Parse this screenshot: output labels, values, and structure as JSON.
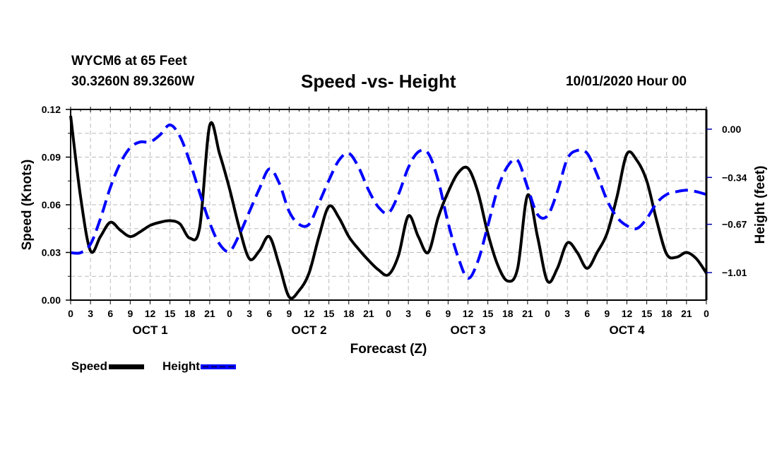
{
  "header": {
    "station": "WYCM6 at 65 Feet",
    "coords": "30.3260N 89.3260W",
    "title": "Speed -vs- Height",
    "datestamp": "10/01/2020 Hour 00"
  },
  "legend": {
    "speed_label": "Speed",
    "height_label": "Height"
  },
  "chart_data": {
    "type": "line",
    "title": "Speed -vs- Height",
    "xlabel": "Forecast (Z)",
    "ylabel": "Speed (Knots)",
    "y2label": "Height (feet)",
    "grid": true,
    "legend_position": "bottom-left",
    "x_hours": [
      0,
      3,
      6,
      9,
      12,
      15,
      18,
      21,
      24,
      27,
      30,
      33,
      36,
      39,
      42,
      45,
      48,
      51,
      54,
      57,
      60,
      63,
      66,
      69,
      72,
      75,
      78,
      81,
      84,
      87,
      90,
      93,
      96
    ],
    "x_tick_labels": [
      "0",
      "3",
      "6",
      "9",
      "12",
      "15",
      "18",
      "21",
      "0",
      "3",
      "6",
      "9",
      "12",
      "15",
      "18",
      "21",
      "0",
      "3",
      "6",
      "9",
      "12",
      "15",
      "18",
      "21",
      "0",
      "3",
      "6",
      "9",
      "12",
      "15",
      "18",
      "21",
      "0"
    ],
    "day_labels": [
      {
        "label": "OCT 1",
        "center_hour": 12
      },
      {
        "label": "OCT 2",
        "center_hour": 36
      },
      {
        "label": "OCT 3",
        "center_hour": 60
      },
      {
        "label": "OCT 4",
        "center_hour": 84
      }
    ],
    "xlim": [
      0,
      96
    ],
    "ylim": [
      0.0,
      0.12
    ],
    "yticks": [
      0.0,
      0.03,
      0.06,
      0.09,
      0.12
    ],
    "ytick_labels": [
      "0.00",
      "0.03",
      "0.06",
      "0.09",
      "0.12"
    ],
    "y2lim": [
      -1.204,
      0.139
    ],
    "y2ticks": [
      0.0,
      -0.34,
      -0.67,
      -1.01
    ],
    "y2tick_labels": [
      "0.00",
      "-0.34",
      "-0.67",
      "-1.01"
    ],
    "series": [
      {
        "name": "Speed",
        "axis": "left",
        "color": "#000000",
        "style": "solid",
        "x": [
          0,
          1.5,
          3,
          4.5,
          6,
          7.5,
          9,
          10.5,
          12,
          13.5,
          15,
          16.5,
          18,
          19.5,
          21,
          22.5,
          24,
          25.5,
          27,
          28.5,
          30,
          31.5,
          33,
          34.5,
          36,
          37.5,
          39,
          40.5,
          42,
          43.5,
          45,
          46.5,
          48,
          49.5,
          51,
          52.5,
          54,
          55.5,
          57,
          58.5,
          60,
          61.5,
          63,
          64.5,
          66,
          67.5,
          69,
          70.5,
          72,
          73.5,
          75,
          76.5,
          78,
          79.5,
          81,
          82.5,
          84,
          85.5,
          87,
          88.5,
          90,
          91.5,
          93,
          94.5,
          96
        ],
        "values": [
          0.116,
          0.065,
          0.031,
          0.04,
          0.049,
          0.044,
          0.04,
          0.043,
          0.047,
          0.049,
          0.05,
          0.048,
          0.039,
          0.046,
          0.11,
          0.092,
          0.07,
          0.045,
          0.026,
          0.031,
          0.04,
          0.022,
          0.002,
          0.006,
          0.017,
          0.04,
          0.059,
          0.052,
          0.04,
          0.032,
          0.025,
          0.019,
          0.016,
          0.028,
          0.053,
          0.04,
          0.03,
          0.052,
          0.068,
          0.08,
          0.083,
          0.068,
          0.042,
          0.022,
          0.012,
          0.02,
          0.066,
          0.04,
          0.012,
          0.02,
          0.036,
          0.03,
          0.02,
          0.03,
          0.042,
          0.065,
          0.092,
          0.088,
          0.075,
          0.05,
          0.029,
          0.027,
          0.03,
          0.026,
          0.017
        ]
      },
      {
        "name": "Height",
        "axis": "right",
        "color": "#0000ff",
        "style": "dashed",
        "x": [
          0,
          1.5,
          3,
          4.5,
          6,
          7.5,
          9,
          10.5,
          12,
          13.5,
          15,
          16.5,
          18,
          19.5,
          21,
          22.5,
          24,
          25.5,
          27,
          28.5,
          30,
          31.5,
          33,
          34.5,
          36,
          37.5,
          39,
          40.5,
          42,
          43.5,
          45,
          46.5,
          48,
          49.5,
          51,
          52.5,
          54,
          55.5,
          57,
          58.5,
          60,
          61.5,
          63,
          64.5,
          66,
          67.5,
          69,
          70.5,
          72,
          73.5,
          75,
          76.5,
          78,
          79.5,
          81,
          82.5,
          84,
          85.5,
          87,
          88.5,
          90,
          91.5,
          93,
          94.5,
          96
        ],
        "values": [
          -0.87,
          -0.87,
          -0.81,
          -0.63,
          -0.41,
          -0.24,
          -0.13,
          -0.09,
          -0.09,
          -0.04,
          0.03,
          -0.05,
          -0.23,
          -0.45,
          -0.66,
          -0.81,
          -0.86,
          -0.74,
          -0.58,
          -0.42,
          -0.28,
          -0.38,
          -0.58,
          -0.67,
          -0.67,
          -0.52,
          -0.36,
          -0.22,
          -0.17,
          -0.27,
          -0.43,
          -0.55,
          -0.59,
          -0.46,
          -0.27,
          -0.16,
          -0.17,
          -0.36,
          -0.66,
          -0.9,
          -1.05,
          -0.93,
          -0.68,
          -0.42,
          -0.26,
          -0.22,
          -0.41,
          -0.6,
          -0.61,
          -0.44,
          -0.21,
          -0.15,
          -0.17,
          -0.32,
          -0.5,
          -0.62,
          -0.68,
          -0.7,
          -0.63,
          -0.52,
          -0.46,
          -0.44,
          -0.43,
          -0.44,
          -0.46
        ]
      }
    ]
  }
}
